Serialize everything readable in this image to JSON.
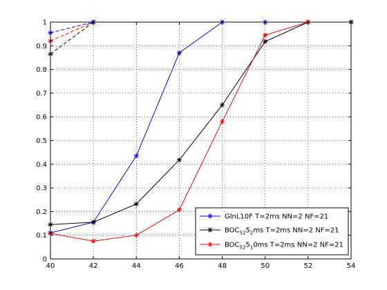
{
  "chart_data": {
    "type": "line",
    "title": "",
    "xlabel": "",
    "ylabel": "",
    "xlim": [
      40,
      54
    ],
    "ylim": [
      0,
      1
    ],
    "xticks": [
      40,
      42,
      44,
      46,
      48,
      50,
      52,
      54
    ],
    "yticks": [
      0,
      0.1,
      0.2,
      0.3,
      0.4,
      0.5,
      0.6,
      0.7,
      0.8,
      0.9,
      1
    ],
    "xtick_labels": [
      "40",
      "42",
      "44",
      "46",
      "48",
      "50",
      "52",
      "54"
    ],
    "ytick_labels": [
      "0",
      "0.1",
      "0.2",
      "0.3",
      "0.4",
      "0.5",
      "0.6",
      "0.7",
      "0.8",
      "0.9",
      "1"
    ],
    "grid": true,
    "legend_position": "bottom-right",
    "series": [
      {
        "name": "GlnL10F T=2ms NN=2 NF=21",
        "legend_parts": [
          {
            "t": "GlnL10F T=2ms NN=2 NF=21",
            "sub": false
          }
        ],
        "color": "#0000ff",
        "marker": "star",
        "x": [
          40,
          42,
          44,
          46,
          48,
          50,
          52,
          54
        ],
        "y": [
          0.11,
          0.155,
          0.435,
          0.87,
          1.0,
          1.0,
          1.0,
          1.0
        ]
      },
      {
        "name": "BOC52 52ms T=2ms NN=2 NF=21",
        "legend_parts": [
          {
            "t": "BOC",
            "sub": false
          },
          {
            "t": "52",
            "sub": true
          },
          {
            "t": "5",
            "sub": false
          },
          {
            "t": "2",
            "sub": true
          },
          {
            "t": "ms T=2ms NN=2 NF=21",
            "sub": false
          }
        ],
        "color": "#000000",
        "marker": "star",
        "x": [
          40,
          42,
          44,
          46,
          48,
          50,
          52,
          54
        ],
        "y": [
          0.145,
          0.155,
          0.232,
          0.418,
          0.65,
          0.918,
          1.0,
          1.0
        ]
      },
      {
        "name": "BOC52 510ms T=2ms NN=2 NF=21",
        "legend_parts": [
          {
            "t": "BOC",
            "sub": false
          },
          {
            "t": "52",
            "sub": true
          },
          {
            "t": "5",
            "sub": false
          },
          {
            "t": "1",
            "sub": true
          },
          {
            "t": "0ms T=2ms NN=2 NF=21",
            "sub": false
          }
        ],
        "color": "#ff0000",
        "marker": "star",
        "x": [
          40,
          42,
          44,
          46,
          48,
          50,
          52
        ],
        "y": [
          0.108,
          0.075,
          0.1,
          0.207,
          0.58,
          0.945,
          1.0
        ]
      }
    ],
    "dashed_series": [
      {
        "color": "#000000",
        "x": [
          40,
          42
        ],
        "y": [
          0.865,
          1.0
        ]
      },
      {
        "color": "#ff0000",
        "x": [
          40,
          42
        ],
        "y": [
          0.92,
          1.0
        ]
      },
      {
        "color": "#0000ff",
        "x": [
          40,
          42
        ],
        "y": [
          0.955,
          1.0
        ]
      }
    ]
  }
}
